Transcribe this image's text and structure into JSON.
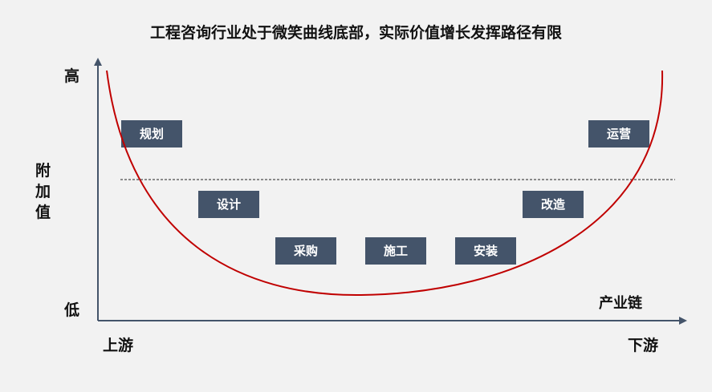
{
  "title": "工程咨询行业处于微笑曲线底部，实际价值增长发挥路径有限",
  "y_axis": {
    "label": "附加值",
    "high": "高",
    "low": "低"
  },
  "x_axis": {
    "label": "产业链",
    "start": "上游",
    "end": "下游"
  },
  "stages": [
    "规划",
    "设计",
    "采购",
    "施工",
    "安装",
    "改造",
    "运营"
  ],
  "colors": {
    "background": "#f2f2f2",
    "box": "#44546a",
    "axis": "#44546a",
    "curve": "#c00000"
  }
}
